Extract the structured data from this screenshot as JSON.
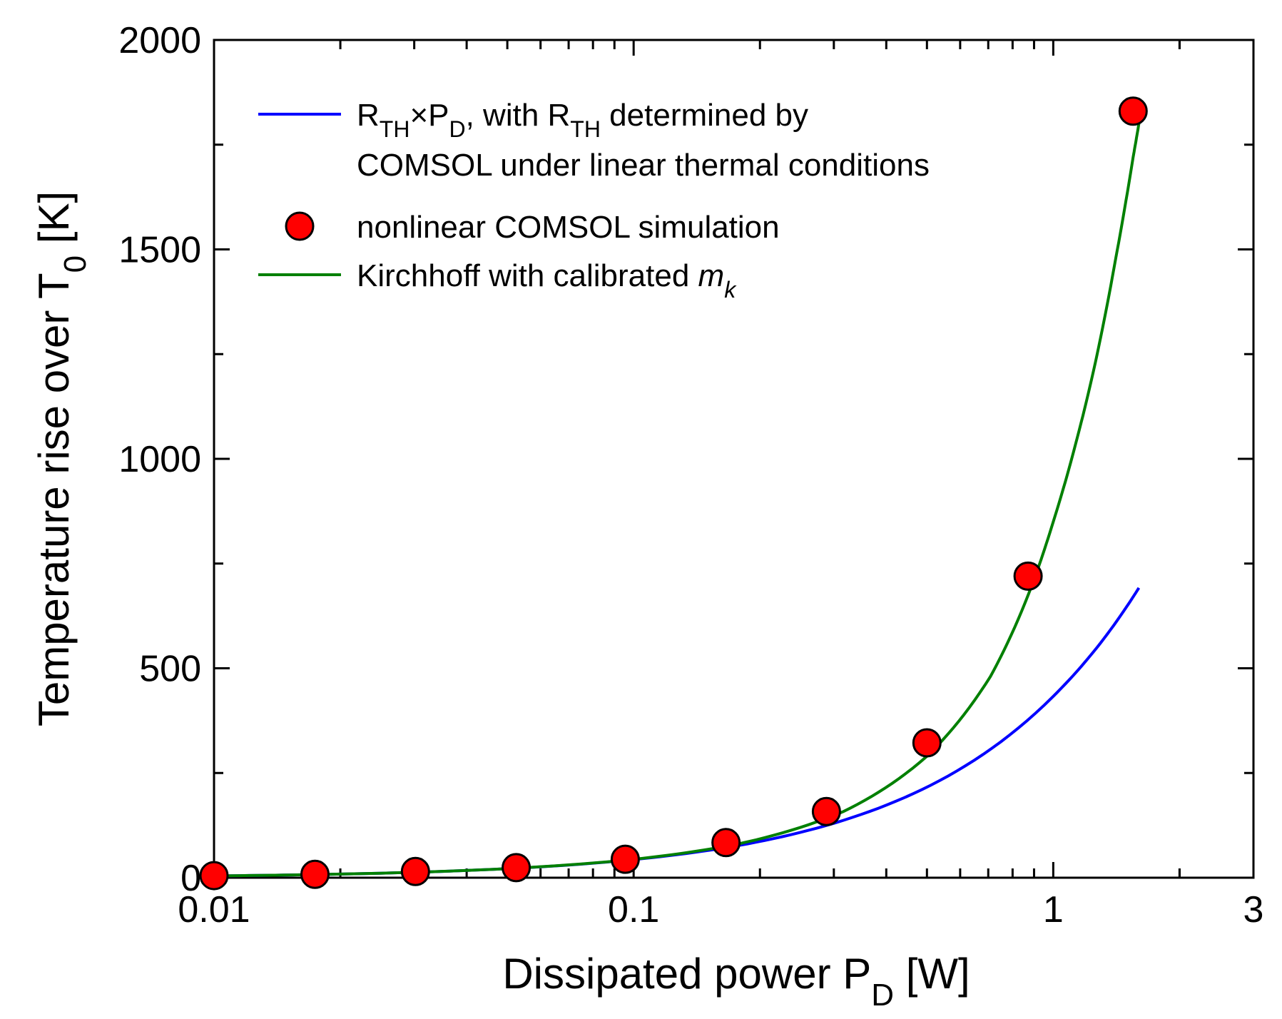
{
  "chart_data": {
    "type": "line",
    "x_scale": "log",
    "y_scale": "linear",
    "xlim": [
      0.01,
      3
    ],
    "ylim": [
      0,
      2000
    ],
    "grid": false,
    "legend_position": "top-left",
    "xlabel": {
      "main": "Dissipated power P",
      "sub": "D",
      "unit": " [W]"
    },
    "ylabel": {
      "main": "Temperature rise over T",
      "sub": "0",
      "unit": " [K]"
    },
    "x_ticks": [
      {
        "value": 0.01,
        "label": "0.01"
      },
      {
        "value": 0.1,
        "label": "0.1"
      },
      {
        "value": 1,
        "label": "1"
      },
      {
        "value": 3,
        "label": "3"
      }
    ],
    "y_ticks": [
      {
        "value": 0,
        "label": "0"
      },
      {
        "value": 500,
        "label": "500"
      },
      {
        "value": 1000,
        "label": "1000"
      },
      {
        "value": 1500,
        "label": "1500"
      },
      {
        "value": 2000,
        "label": "2000"
      }
    ],
    "series": [
      {
        "kind": "line",
        "color": "#0000ff",
        "legend": {
          "line1": [
            {
              "t": "R"
            },
            {
              "t": "TH",
              "sub": true
            },
            {
              "t": "×P"
            },
            {
              "t": "D",
              "sub": true
            },
            {
              "t": ", with R"
            },
            {
              "t": "TH",
              "sub": true
            },
            {
              "t": " determined by"
            }
          ],
          "line2": "COMSOL under linear thermal conditions"
        },
        "x": [
          0.01,
          0.0178,
          0.0316,
          0.0562,
          0.1,
          0.178,
          0.316,
          0.562,
          1.0,
          1.3,
          1.6
        ],
        "y": [
          4.3,
          7.7,
          13.7,
          24.3,
          43.3,
          77,
          137,
          243,
          433,
          562,
          692
        ]
      },
      {
        "kind": "scatter",
        "color": "#ff0000",
        "legend": {
          "line1": [
            {
              "t": "nonlinear COMSOL simulation"
            }
          ]
        },
        "x": [
          0.01,
          0.0174,
          0.0302,
          0.0525,
          0.0955,
          0.166,
          0.288,
          0.5,
          0.871,
          1.55
        ],
        "y": [
          5,
          8,
          15,
          24,
          44,
          84,
          158,
          322,
          720,
          1830
        ]
      },
      {
        "kind": "line",
        "color": "#008000",
        "legend": {
          "line1": [
            {
              "t": "Kirchhoff with calibrated "
            },
            {
              "t": "m",
              "italic": true
            },
            {
              "t": "k",
              "sub": true,
              "italic": true
            }
          ]
        },
        "x": [
          0.01,
          0.0178,
          0.0316,
          0.0562,
          0.1,
          0.178,
          0.316,
          0.5,
          0.708,
          0.891,
          1.0,
          1.12,
          1.26,
          1.41,
          1.55,
          1.6
        ],
        "y": [
          4.3,
          7.7,
          13.7,
          24.5,
          44,
          81,
          158,
          290,
          480,
          700,
          850,
          1020,
          1230,
          1480,
          1720,
          1800
        ]
      }
    ]
  }
}
